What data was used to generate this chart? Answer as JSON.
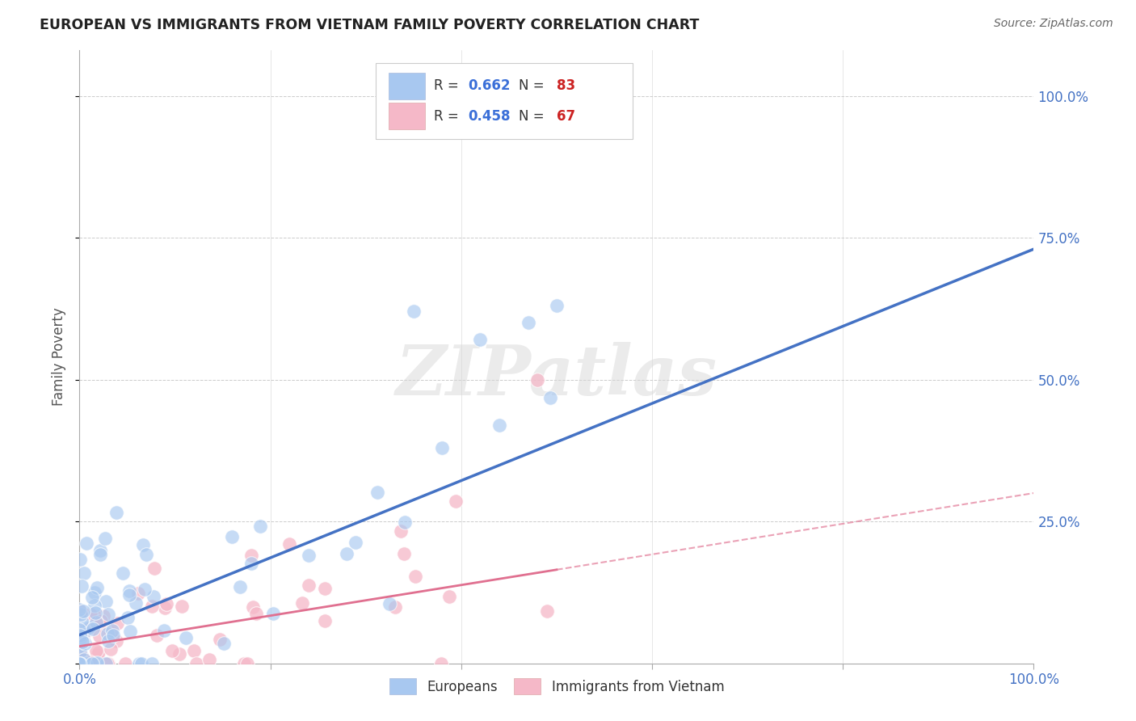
{
  "title": "EUROPEAN VS IMMIGRANTS FROM VIETNAM FAMILY POVERTY CORRELATION CHART",
  "source": "Source: ZipAtlas.com",
  "ylabel": "Family Poverty",
  "blue_color": "#a8c8f0",
  "pink_color": "#f5b8c8",
  "blue_line_color": "#4472c4",
  "pink_line_color": "#e07090",
  "blue_r": 0.662,
  "blue_n": 83,
  "pink_r": 0.458,
  "pink_n": 67,
  "watermark": "ZIPatlas",
  "background_color": "#ffffff",
  "grid_color": "#cccccc",
  "tick_color": "#4472c4",
  "title_color": "#222222",
  "source_color": "#666666",
  "ylabel_color": "#555555"
}
